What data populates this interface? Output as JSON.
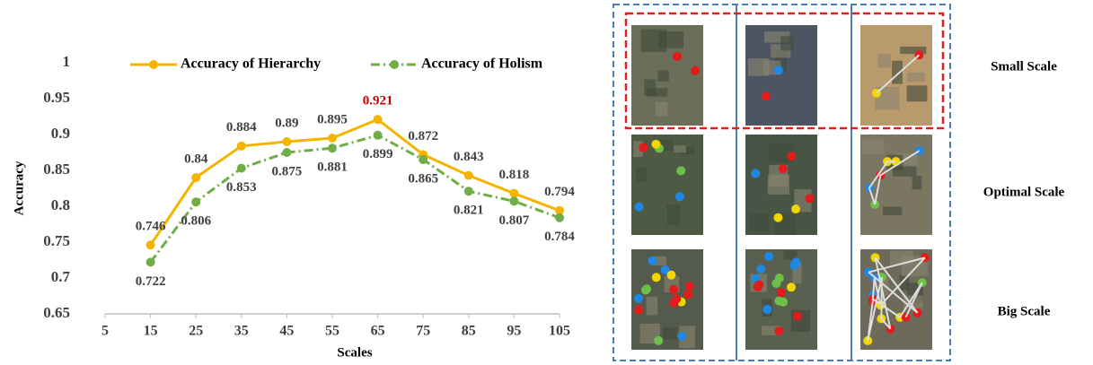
{
  "chart_data": {
    "type": "line",
    "x_label": "Scales",
    "y_label": "Accuracy",
    "x": [
      15,
      25,
      35,
      45,
      55,
      65,
      75,
      85,
      95,
      105
    ],
    "xlim": [
      5,
      105
    ],
    "xticks": [
      5,
      15,
      25,
      35,
      45,
      55,
      65,
      75,
      85,
      95,
      105
    ],
    "ylim": [
      0.65,
      1
    ],
    "yticks": [
      0.65,
      0.7,
      0.75,
      0.8,
      0.85,
      0.9,
      0.95,
      1
    ],
    "grid": false,
    "series": [
      {
        "name": "Accuracy of Hierarchy",
        "color": "#f5b400",
        "dash": "solid",
        "values": [
          0.746,
          0.84,
          0.884,
          0.89,
          0.895,
          0.921,
          0.872,
          0.843,
          0.818,
          0.794
        ],
        "highlight": {
          "index": 5,
          "color": "#c00000"
        }
      },
      {
        "name": "Accuracy of Holism",
        "color": "#70ad47",
        "dash": "dashdot",
        "values": [
          0.722,
          0.806,
          0.853,
          0.875,
          0.881,
          0.899,
          0.865,
          0.821,
          0.807,
          0.784
        ]
      }
    ]
  },
  "panel": {
    "row_labels": [
      "Small Scale",
      "Optimal Scale",
      "Big Scale"
    ]
  }
}
